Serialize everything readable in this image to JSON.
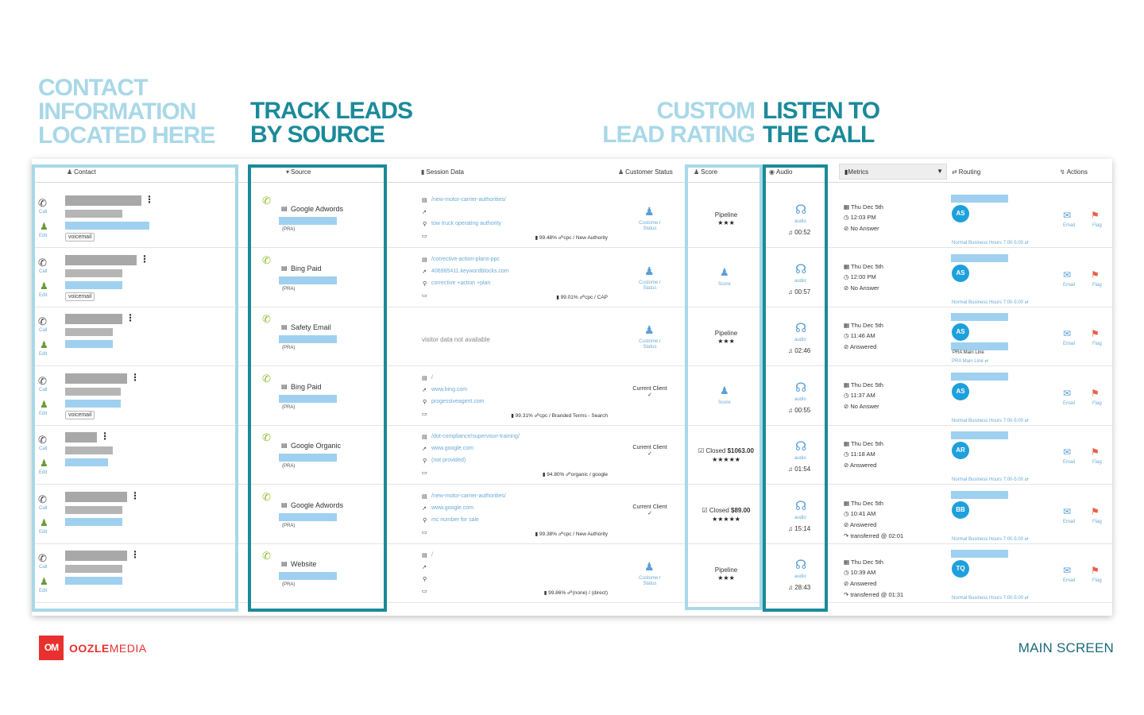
{
  "headlines": {
    "contact": [
      "CONTACT",
      "INFORMATION",
      "LOCATED HERE"
    ],
    "source": [
      "TRACK LEADS",
      "BY SOURCE"
    ],
    "rating": [
      "CUSTOM",
      "LEAD RATING"
    ],
    "listen": [
      "LISTEN TO",
      "THE CALL"
    ]
  },
  "colors": {
    "light": "#a9d8e8",
    "dark": "#1b8a9a",
    "brand": "#e8302f",
    "link": "#6aaad4",
    "avatar": "#1ea0dc"
  },
  "header": {
    "contact": "Contact",
    "source": "Source",
    "session": "Session Data",
    "customer_status": "Customer Status",
    "score": "Score",
    "audio": "Audio",
    "metrics": "Metrics",
    "routing": "Routing",
    "actions": "Actions"
  },
  "labels": {
    "call": "Call",
    "edit": "Edit",
    "voicemail": "voicemail",
    "pra": "(PRA)",
    "audio": "audio",
    "email": "Email",
    "flag": "Flag",
    "score": "Score",
    "customer_status": "Custome r Status",
    "current_client": "Current Client"
  },
  "rows": [
    {
      "source": "Google Adwords",
      "session": {
        "page": "/new-motor-carrier-authorities/",
        "referrer": "",
        "keyword": "tow truck operating authority",
        "stat": "99.48%",
        "channel": "cpc / New Authority"
      },
      "status_type": "customer",
      "score": {
        "type": "text",
        "text": "Pipeline",
        "stars": "★★★"
      },
      "audio_dur": "00:52",
      "metrics": {
        "date": "Thu Dec 5th",
        "time": "12:03 PM",
        "result": "No Answer",
        "extra": ""
      },
      "routing": {
        "avatar": "AS",
        "main": "",
        "foot": "Normal Business Hours 7:00-5:00"
      },
      "voicemail": true
    },
    {
      "source": "Bing Paid",
      "session": {
        "page": "/corrective-action-plans-ppc",
        "referrer": "406985411.keywordblocks.com",
        "keyword": "corrective +action +plan",
        "stat": "99.01%",
        "channel": "cpc / CAP"
      },
      "status_type": "customer",
      "score": {
        "type": "icon"
      },
      "audio_dur": "00:57",
      "metrics": {
        "date": "Thu Dec 5th",
        "time": "12:00 PM",
        "result": "No Answer",
        "extra": ""
      },
      "routing": {
        "avatar": "AS",
        "main": "",
        "foot": "Normal Business Hours 7:00-5:00"
      },
      "voicemail": true
    },
    {
      "source": "Safety Email",
      "session": {
        "na": "visitor data not available"
      },
      "status_type": "customer",
      "score": {
        "type": "text",
        "text": "Pipeline",
        "stars": "★★★"
      },
      "audio_dur": "02:46",
      "metrics": {
        "date": "Thu Dec 5th",
        "time": "11:46 AM",
        "result": "Answered",
        "extra": ""
      },
      "routing": {
        "avatar": "AS",
        "main": "PRA Main Line",
        "foot": "PRA Main Line"
      },
      "voicemail": false
    },
    {
      "source": "Bing Paid",
      "session": {
        "page": "/",
        "referrer": "www.bing.com",
        "keyword": "progessiveagent.com",
        "stat": "99.31%",
        "channel": "cpc / Branded Terms - Search"
      },
      "status_type": "current",
      "score": {
        "type": "icon"
      },
      "audio_dur": "00:55",
      "metrics": {
        "date": "Thu Dec 5th",
        "time": "11:37 AM",
        "result": "No Answer",
        "extra": ""
      },
      "routing": {
        "avatar": "AS",
        "main": "",
        "foot": "Normal Business Hours 7:00-5:00"
      },
      "voicemail": true
    },
    {
      "source": "Google Organic",
      "session": {
        "page": "/dot-compliance/supervisor-training/",
        "referrer": "www.google.com",
        "keyword": "(not provided)",
        "stat": "94.80%",
        "channel": "organic / google"
      },
      "status_type": "current",
      "score": {
        "type": "closed",
        "text": "Closed",
        "amount": "$1063.00",
        "stars": "★★★★★"
      },
      "audio_dur": "01:54",
      "metrics": {
        "date": "Thu Dec 5th",
        "time": "11:18 AM",
        "result": "Answered",
        "extra": ""
      },
      "routing": {
        "avatar": "AR",
        "main": "",
        "foot": "Normal Business Hours 7:00-5:00"
      },
      "voicemail": false
    },
    {
      "source": "Google Adwords",
      "session": {
        "page": "/new-motor-carrier-authorities/",
        "referrer": "www.google.com",
        "keyword": "mc number for sale",
        "stat": "99.38%",
        "channel": "cpc / New Authority"
      },
      "status_type": "current",
      "score": {
        "type": "closed",
        "text": "Closed",
        "amount": "$89.00",
        "stars": "★★★★★"
      },
      "audio_dur": "15:14",
      "metrics": {
        "date": "Thu Dec 5th",
        "time": "10:41 AM",
        "result": "Answered",
        "extra": "transferred @ 02:01"
      },
      "routing": {
        "avatar": "BB",
        "main": "",
        "foot": "Normal Business Hours 7:00-5:00"
      },
      "voicemail": false
    },
    {
      "source": "Website",
      "session": {
        "page": "/",
        "referrer": "",
        "keyword": "",
        "stat": "99.86%",
        "channel": "(none) / (direct)"
      },
      "status_type": "customer",
      "score": {
        "type": "text",
        "text": "Pipeline",
        "stars": "★★★"
      },
      "audio_dur": "28:43",
      "metrics": {
        "date": "Thu Dec 5th",
        "time": "10:39 AM",
        "result": "Answered",
        "extra": "transferred @ 01:31"
      },
      "routing": {
        "avatar": "TQ",
        "main": "",
        "foot": "Normal Business Hours 7:00-5:00"
      },
      "voicemail": false
    }
  ],
  "footer": {
    "logo_mark": "OM",
    "logo_bold": "OOZLE",
    "logo_rest": "MEDIA",
    "caption": "MAIN SCREEN"
  }
}
